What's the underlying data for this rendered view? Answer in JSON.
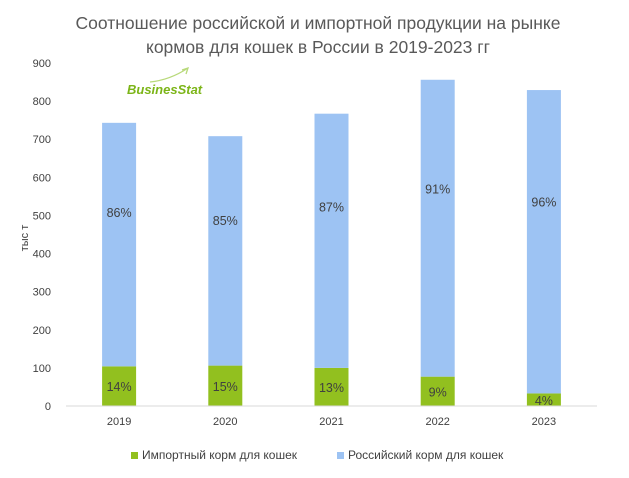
{
  "chart_data": {
    "type": "bar",
    "stacked": true,
    "title_lines": [
      "Соотношение российской и импортной продукции на рынке",
      "кормов для кошек в России в 2019-2023 гг"
    ],
    "xlabel": "",
    "ylabel": "тыс т",
    "ylim": [
      0,
      900
    ],
    "yticks": [
      0,
      100,
      200,
      300,
      400,
      500,
      600,
      700,
      800,
      900
    ],
    "categories": [
      "2019",
      "2020",
      "2021",
      "2022",
      "2023"
    ],
    "series": [
      {
        "name": "Импортный  корм для кошек",
        "color": "#92c01f",
        "values": [
          104,
          106,
          100,
          77,
          33
        ],
        "labels": [
          "14%",
          "15%",
          "13%",
          "9%",
          "4%"
        ]
      },
      {
        "name": "Российский корм для кошек",
        "color": "#9dc3f3",
        "values": [
          639,
          602,
          667,
          779,
          796
        ],
        "labels": [
          "86%",
          "85%",
          "87%",
          "91%",
          "96%"
        ]
      }
    ],
    "legend_position": "bottom"
  },
  "logo": {
    "text": "BusinesStat"
  },
  "colors": {
    "axis": "#d9d9d9",
    "text": "#404040"
  }
}
